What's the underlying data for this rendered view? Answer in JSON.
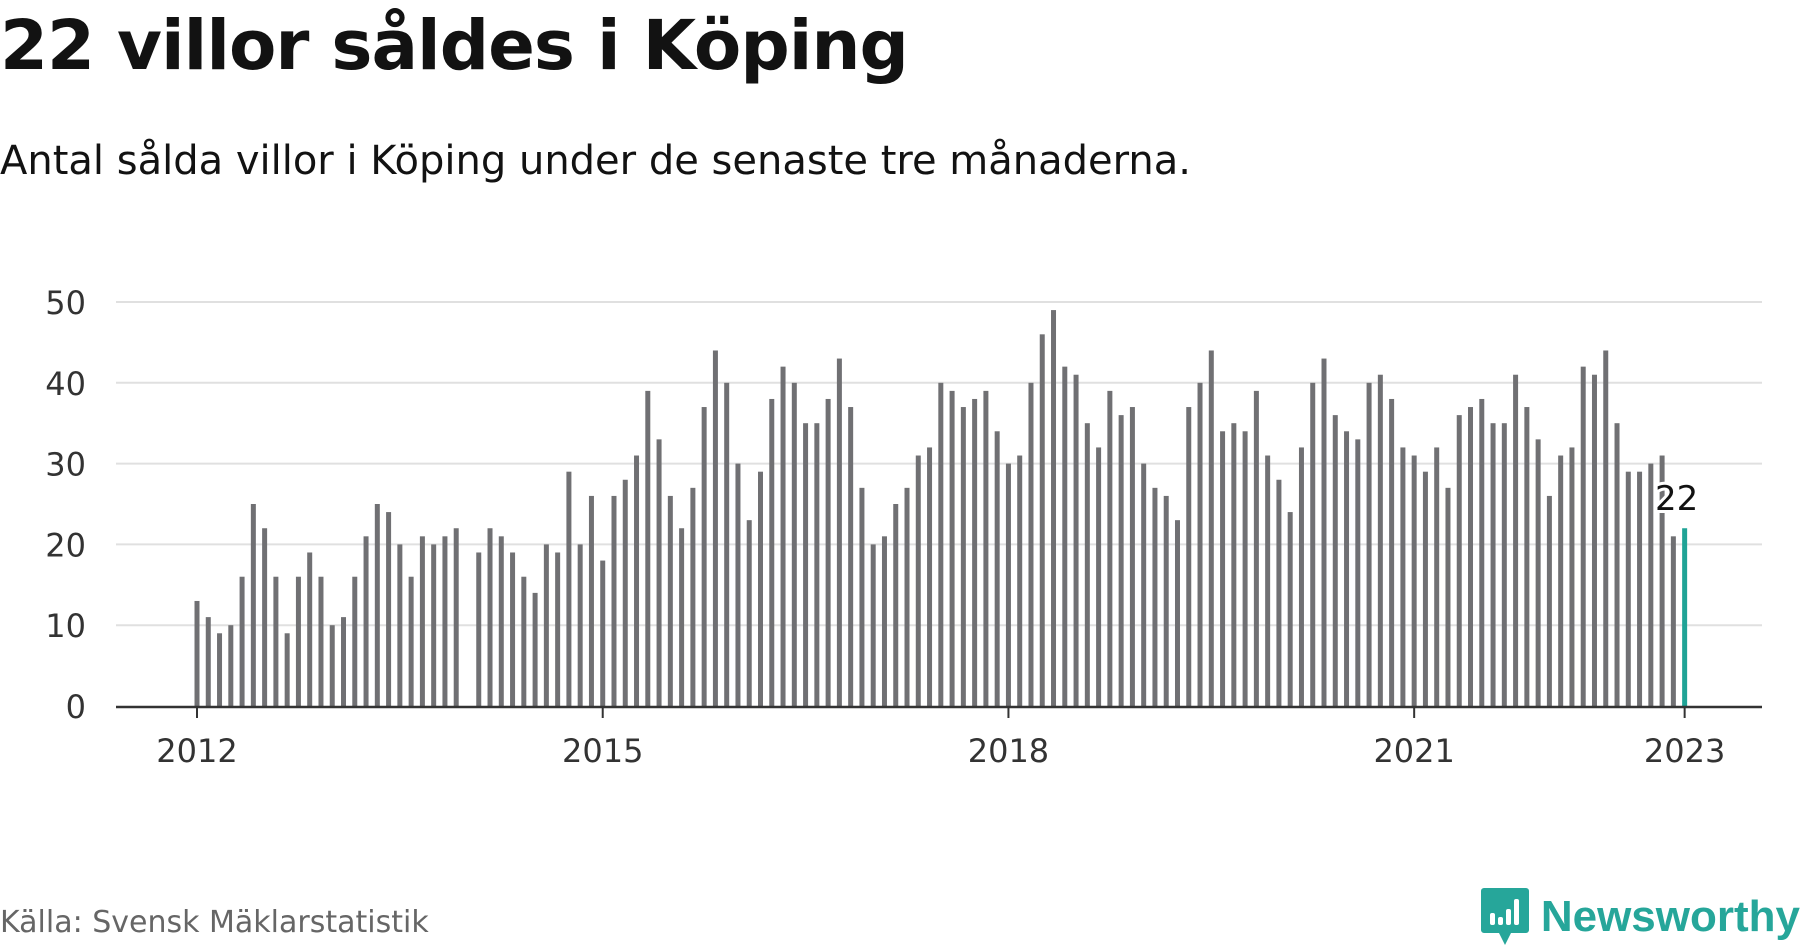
{
  "header": {
    "title": "22 villor såldes i Köping",
    "subtitle": "Antal sålda villor i Köping under de senaste tre månaderna."
  },
  "footer": {
    "source": "Källa: Svensk Mäklarstatistik",
    "brand": "Newsworthy",
    "brand_icon": "bar-chart-logo-icon"
  },
  "colors": {
    "bar": "#707073",
    "highlight": "#1fa396",
    "grid": "#e0e0e0",
    "axis": "#333333",
    "brand": "#26a69a"
  },
  "chart_data": {
    "type": "bar",
    "title": "22 villor såldes i Köping",
    "subtitle": "Antal sålda villor i Köping under de senaste tre månaderna.",
    "xlabel": "",
    "ylabel": "",
    "ylim": [
      0,
      50
    ],
    "yticks": [
      0,
      10,
      20,
      30,
      40,
      50
    ],
    "xticks": [
      "2012",
      "2015",
      "2018",
      "2021",
      "2023"
    ],
    "grid": true,
    "start": "2012-01",
    "frequency": "monthly",
    "values": [
      13,
      11,
      9,
      10,
      16,
      25,
      22,
      16,
      9,
      16,
      19,
      16,
      10,
      11,
      16,
      21,
      25,
      24,
      20,
      16,
      21,
      20,
      21,
      22,
      null,
      19,
      22,
      21,
      19,
      16,
      14,
      20,
      19,
      29,
      20,
      26,
      18,
      26,
      28,
      31,
      39,
      33,
      26,
      22,
      27,
      37,
      44,
      40,
      30,
      23,
      29,
      38,
      42,
      40,
      35,
      35,
      38,
      43,
      37,
      27,
      20,
      21,
      25,
      27,
      31,
      32,
      40,
      39,
      37,
      38,
      39,
      34,
      30,
      31,
      40,
      46,
      49,
      42,
      41,
      35,
      32,
      39,
      36,
      37,
      30,
      27,
      26,
      23,
      37,
      40,
      44,
      34,
      35,
      34,
      39,
      31,
      28,
      24,
      32,
      40,
      43,
      36,
      34,
      33,
      40,
      41,
      38,
      32,
      31,
      29,
      32,
      27,
      36,
      37,
      38,
      35,
      35,
      41,
      37,
      33,
      26,
      31,
      32,
      42,
      41,
      44,
      35,
      29,
      29,
      30,
      31,
      21,
      22
    ],
    "highlight": {
      "label": "22",
      "value": 22
    }
  }
}
